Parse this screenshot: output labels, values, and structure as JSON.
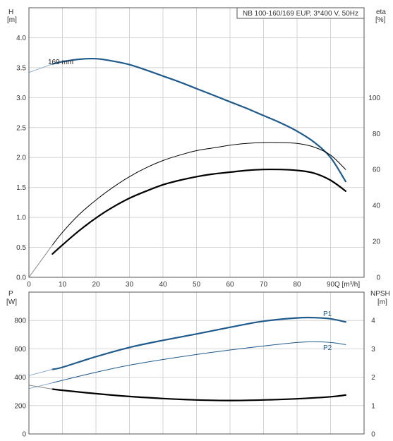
{
  "title_box": "NB 100-160/169 EUP, 3*400 V, 50Hz",
  "colors": {
    "blue": "#1f5a8c",
    "black": "#000000",
    "grid": "#d4d4d4"
  },
  "top_axes": {
    "left_label_1": "H",
    "left_label_2": "[m]",
    "right_label_1": "eta",
    "right_label_2": "[%]",
    "x_label": "Q [m³/h]"
  },
  "bottom_axes": {
    "left_label_1": "P",
    "left_label_2": "[W]",
    "right_label_1": "NPSH",
    "right_label_2": "[m]"
  },
  "chart_data": [
    {
      "type": "line",
      "xlim": [
        0,
        100
      ],
      "x_ticks": [
        0,
        10,
        20,
        30,
        40,
        50,
        60,
        70,
        80,
        90
      ],
      "ylim": [
        0,
        4.5
      ],
      "y_ticks": [
        0.0,
        0.5,
        1.0,
        1.5,
        2.0,
        2.5,
        3.0,
        3.5,
        4.0
      ],
      "y_tick_labels": [
        "0.0",
        "0.5",
        "1.0",
        "1.5",
        "2.0",
        "2.5",
        "3.0",
        "3.5",
        "4.0"
      ],
      "y2lim": [
        0,
        150
      ],
      "y2_ticks": [
        0,
        20,
        40,
        60,
        80,
        100
      ],
      "grid": true,
      "series": [
        {
          "name": "169 mm",
          "axis": "left",
          "color": "#1f5a8c",
          "width": 2.2,
          "x": [
            7,
            10,
            15,
            20,
            25,
            30,
            35,
            40,
            45,
            50,
            55,
            60,
            65,
            70,
            75,
            80,
            85,
            90,
            94.5
          ],
          "y": [
            3.56,
            3.6,
            3.64,
            3.65,
            3.61,
            3.55,
            3.46,
            3.36,
            3.26,
            3.15,
            3.04,
            2.93,
            2.82,
            2.7,
            2.58,
            2.44,
            2.26,
            2.0,
            1.6
          ]
        },
        {
          "axis": "left",
          "color": "#8aa8c8",
          "width": 1.0,
          "x": [
            0,
            7
          ],
          "y": [
            3.42,
            3.56
          ]
        },
        {
          "axis": "right",
          "color": "#000000",
          "width": 1.0,
          "x": [
            7,
            10,
            15,
            20,
            25,
            30,
            35,
            40,
            45,
            50,
            55,
            60,
            65,
            70,
            75,
            80,
            85,
            90,
            94.5
          ],
          "y": [
            18,
            25,
            35,
            43,
            50,
            56,
            61,
            65,
            68,
            70.5,
            72,
            73.5,
            74.5,
            75,
            75,
            74.5,
            72.5,
            68,
            60
          ]
        },
        {
          "axis": "right",
          "color": "#000000",
          "width": 2.2,
          "x": [
            7,
            10,
            15,
            20,
            25,
            30,
            35,
            40,
            45,
            50,
            55,
            60,
            65,
            70,
            75,
            80,
            85,
            90,
            94.5
          ],
          "y": [
            13,
            18,
            26,
            33,
            39,
            44,
            48,
            51.5,
            54,
            56,
            57.5,
            58.5,
            59.5,
            60,
            60,
            59.5,
            58,
            54,
            48
          ]
        },
        {
          "axis": "right",
          "color": "#8a8a8a",
          "width": 1.0,
          "x": [
            0,
            7
          ],
          "y": [
            0,
            18
          ]
        }
      ],
      "annotations": [
        "169 mm"
      ]
    },
    {
      "type": "line",
      "xlim": [
        0,
        100
      ],
      "x_ticks": [
        0,
        10,
        20,
        30,
        40,
        50,
        60,
        70,
        80,
        90
      ],
      "ylim": [
        0,
        1000
      ],
      "y_ticks": [
        0,
        200,
        400,
        600,
        800
      ],
      "y2lim": [
        0,
        5
      ],
      "y2_ticks": [
        0,
        1,
        2,
        3,
        4
      ],
      "grid": true,
      "series": [
        {
          "name": "P1",
          "axis": "left",
          "color": "#1f5a8c",
          "width": 2.2,
          "x": [
            7,
            10,
            20,
            30,
            40,
            50,
            60,
            70,
            80,
            85,
            90,
            94.5
          ],
          "y": [
            455,
            470,
            545,
            610,
            660,
            705,
            752,
            795,
            818,
            820,
            812,
            790
          ]
        },
        {
          "name": "P2",
          "axis": "left",
          "color": "#1f5a8c",
          "width": 1.0,
          "x": [
            7,
            10,
            20,
            30,
            40,
            50,
            60,
            70,
            80,
            85,
            90,
            94.5
          ],
          "y": [
            360,
            378,
            435,
            485,
            525,
            560,
            592,
            620,
            645,
            650,
            645,
            630
          ]
        },
        {
          "axis": "left",
          "color": "#8aa8c8",
          "width": 1.0,
          "x": [
            0,
            7
          ],
          "y": [
            412,
            455
          ]
        },
        {
          "axis": "left",
          "color": "#8aa8c8",
          "width": 1.0,
          "x": [
            0,
            7
          ],
          "y": [
            320,
            360
          ]
        },
        {
          "axis": "right",
          "color": "#000000",
          "width": 2.2,
          "x": [
            7,
            10,
            20,
            30,
            40,
            50,
            60,
            70,
            80,
            90,
            94.5
          ],
          "y": [
            1.58,
            1.54,
            1.42,
            1.32,
            1.25,
            1.2,
            1.18,
            1.2,
            1.24,
            1.31,
            1.37
          ]
        },
        {
          "axis": "right",
          "color": "#8a8a8a",
          "width": 1.0,
          "x": [
            0,
            7
          ],
          "y": [
            1.72,
            1.58
          ]
        }
      ]
    }
  ]
}
